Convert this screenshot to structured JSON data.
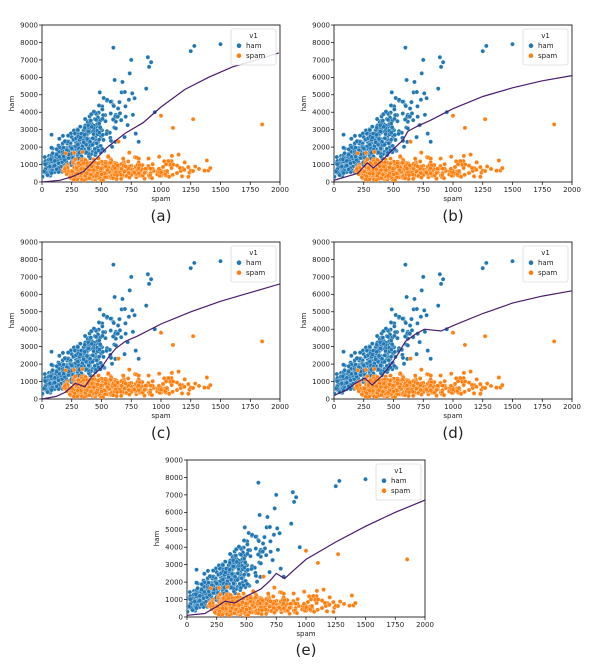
{
  "colors": {
    "ham": "#1f77b4",
    "spam": "#ff7f0e",
    "boundary": "#4b1a6e"
  },
  "chart_data": [
    {
      "panel": "(a)",
      "type": "scatter",
      "caption": "(a)",
      "xlabel": "spam",
      "ylabel": "ham",
      "xlim": [
        0,
        2000
      ],
      "ylim": [
        0,
        9000
      ],
      "xticks": [
        "0",
        "250",
        "500",
        "750",
        "1000",
        "1250",
        "1500",
        "1750",
        "2000"
      ],
      "yticks": [
        "0",
        "1000",
        "2000",
        "3000",
        "4000",
        "5000",
        "6000",
        "7000",
        "8000",
        "9000"
      ],
      "legend": {
        "title": "v1",
        "entries": [
          "ham",
          "spam"
        ],
        "position": "top-right"
      },
      "boundary": [
        [
          0,
          0
        ],
        [
          150,
          100
        ],
        [
          250,
          300
        ],
        [
          350,
          600
        ],
        [
          450,
          1300
        ],
        [
          550,
          2000
        ],
        [
          700,
          2800
        ],
        [
          850,
          3400
        ],
        [
          1000,
          4300
        ],
        [
          1200,
          5300
        ],
        [
          1400,
          6000
        ],
        [
          1600,
          6600
        ],
        [
          1800,
          7000
        ],
        [
          1990,
          7400
        ]
      ]
    },
    {
      "panel": "(b)",
      "type": "scatter",
      "caption": "(b)",
      "xlabel": "spam",
      "ylabel": "ham",
      "xlim": [
        0,
        2000
      ],
      "ylim": [
        0,
        9000
      ],
      "xticks": [
        "0",
        "250",
        "500",
        "750",
        "1000",
        "1250",
        "1500",
        "1750",
        "2000"
      ],
      "yticks": [
        "0",
        "1000",
        "2000",
        "3000",
        "4000",
        "5000",
        "6000",
        "7000",
        "8000",
        "9000"
      ],
      "legend": {
        "title": "v1",
        "entries": [
          "ham",
          "spam"
        ],
        "position": "top-right"
      },
      "boundary": [
        [
          0,
          100
        ],
        [
          100,
          300
        ],
        [
          200,
          500
        ],
        [
          280,
          1100
        ],
        [
          330,
          800
        ],
        [
          400,
          1200
        ],
        [
          500,
          1900
        ],
        [
          580,
          2400
        ],
        [
          620,
          2900
        ],
        [
          700,
          3200
        ],
        [
          800,
          3500
        ],
        [
          1000,
          4200
        ],
        [
          1250,
          4900
        ],
        [
          1500,
          5400
        ],
        [
          1750,
          5800
        ],
        [
          2000,
          6100
        ]
      ]
    },
    {
      "panel": "(c)",
      "type": "scatter",
      "caption": "(c)",
      "xlabel": "spam",
      "ylabel": "ham",
      "xlim": [
        0,
        2000
      ],
      "ylim": [
        0,
        9000
      ],
      "xticks": [
        "0",
        "250",
        "500",
        "750",
        "1000",
        "1250",
        "1500",
        "1750",
        "2000"
      ],
      "yticks": [
        "0",
        "1000",
        "2000",
        "3000",
        "4000",
        "5000",
        "6000",
        "7000",
        "8000",
        "9000"
      ],
      "legend": {
        "title": "v1",
        "entries": [
          "ham",
          "spam"
        ],
        "position": "top-right"
      },
      "boundary": [
        [
          0,
          0
        ],
        [
          120,
          150
        ],
        [
          200,
          400
        ],
        [
          280,
          900
        ],
        [
          360,
          700
        ],
        [
          420,
          1300
        ],
        [
          500,
          1800
        ],
        [
          560,
          2400
        ],
        [
          620,
          2900
        ],
        [
          700,
          3300
        ],
        [
          800,
          3600
        ],
        [
          1000,
          4300
        ],
        [
          1250,
          5000
        ],
        [
          1500,
          5600
        ],
        [
          1750,
          6100
        ],
        [
          2000,
          6600
        ]
      ]
    },
    {
      "panel": "(d)",
      "type": "scatter",
      "caption": "(d)",
      "xlabel": "spam",
      "ylabel": "ham",
      "xlim": [
        0,
        2000
      ],
      "ylim": [
        0,
        9000
      ],
      "xticks": [
        "0",
        "250",
        "500",
        "750",
        "1000",
        "1250",
        "1500",
        "1750",
        "2000"
      ],
      "yticks": [
        "0",
        "1000",
        "2000",
        "3000",
        "4000",
        "5000",
        "6000",
        "7000",
        "8000",
        "9000"
      ],
      "legend": {
        "title": "v1",
        "entries": [
          "ham",
          "spam"
        ],
        "position": "top-right"
      },
      "boundary": [
        [
          0,
          200
        ],
        [
          100,
          500
        ],
        [
          180,
          900
        ],
        [
          260,
          1200
        ],
        [
          320,
          800
        ],
        [
          400,
          1300
        ],
        [
          480,
          2000
        ],
        [
          540,
          2600
        ],
        [
          600,
          3300
        ],
        [
          680,
          3700
        ],
        [
          760,
          4000
        ],
        [
          900,
          3900
        ],
        [
          1000,
          4200
        ],
        [
          1250,
          4900
        ],
        [
          1500,
          5500
        ],
        [
          1750,
          5900
        ],
        [
          2000,
          6200
        ]
      ]
    },
    {
      "panel": "(e)",
      "type": "scatter",
      "caption": "(e)",
      "xlabel": "spam",
      "ylabel": "ham",
      "xlim": [
        0,
        2000
      ],
      "ylim": [
        0,
        9000
      ],
      "xticks": [
        "0",
        "250",
        "500",
        "750",
        "1000",
        "1250",
        "1500",
        "1750",
        "2000"
      ],
      "yticks": [
        "0",
        "1000",
        "2000",
        "3000",
        "4000",
        "5000",
        "6000",
        "7000",
        "8000",
        "9000"
      ],
      "legend": {
        "title": "v1",
        "entries": [
          "ham",
          "spam"
        ],
        "position": "top-right"
      },
      "boundary": [
        [
          0,
          100
        ],
        [
          150,
          200
        ],
        [
          250,
          600
        ],
        [
          320,
          900
        ],
        [
          400,
          800
        ],
        [
          500,
          1200
        ],
        [
          620,
          1600
        ],
        [
          700,
          2100
        ],
        [
          750,
          2500
        ],
        [
          820,
          2200
        ],
        [
          900,
          2700
        ],
        [
          1000,
          3300
        ],
        [
          1250,
          4300
        ],
        [
          1500,
          5200
        ],
        [
          1750,
          6000
        ],
        [
          2000,
          6700
        ]
      ]
    }
  ]
}
